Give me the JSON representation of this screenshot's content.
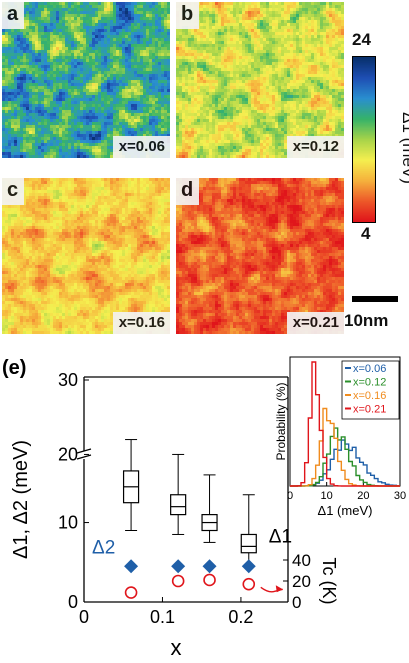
{
  "figure": {
    "panels": [
      {
        "letter": "a",
        "x_label": "x=0.06",
        "base_gap": 17.0,
        "variation": 4.5
      },
      {
        "letter": "b",
        "x_label": "x=0.12",
        "base_gap": 12.5,
        "variation": 3.5
      },
      {
        "letter": "c",
        "x_label": "x=0.16",
        "base_gap": 10.2,
        "variation": 2.5
      },
      {
        "letter": "d",
        "x_label": "x=0.21",
        "base_gap": 6.5,
        "variation": 2.5
      }
    ],
    "colorbar": {
      "max_label": "24",
      "min_label": "4",
      "label": "Δ1 (meV)",
      "stops": [
        "#08306b",
        "#1f4fb4",
        "#2a8fd0",
        "#36b36a",
        "#a7d44a",
        "#f5f050",
        "#f6b33d",
        "#ee5a2a",
        "#e0151b"
      ]
    },
    "scale_bar_label": "10nm",
    "panel_e_label": "(e)"
  },
  "chart_data": [
    {
      "type": "box",
      "title": "",
      "xlabel": "x",
      "ylabel": "Δ1, Δ2 (meV)",
      "ylabel_right": "Tc (K)",
      "xlim": [
        0,
        0.26
      ],
      "ylim": [
        0,
        30
      ],
      "ylim_right": [
        0,
        40
      ],
      "x_ticks": [
        "0",
        "0.1",
        "0.2"
      ],
      "x_tick_values": [
        0,
        0.1,
        0.2
      ],
      "y_ticks": [
        "0",
        "10",
        "20",
        "30"
      ],
      "y_tick_values": [
        0,
        10,
        20,
        30
      ],
      "y_axis_break": [
        18,
        21
      ],
      "y_right_ticks": [
        "0",
        "20",
        "40"
      ],
      "y_right_tick_values": [
        0,
        20,
        40
      ],
      "delta1_label": "Δ1",
      "delta2_label": "Δ2",
      "delta1_boxes": [
        {
          "x": 0.06,
          "whisker_low": 9.0,
          "q1": 12.5,
          "median": 14.5,
          "q3": 16.5,
          "whisker_high": 22.0
        },
        {
          "x": 0.12,
          "whisker_low": 8.5,
          "q1": 11.0,
          "median": 12.0,
          "q3": 13.5,
          "whisker_high": 20.0
        },
        {
          "x": 0.16,
          "whisker_low": 7.5,
          "q1": 9.0,
          "median": 10.0,
          "q3": 11.0,
          "whisker_high": 16.0
        },
        {
          "x": 0.21,
          "whisker_low": 4.5,
          "q1": 6.2,
          "median": 7.0,
          "q3": 8.5,
          "whisker_high": 13.5
        }
      ],
      "delta2_points": [
        {
          "x": 0.06,
          "y": 4.5
        },
        {
          "x": 0.12,
          "y": 4.5
        },
        {
          "x": 0.16,
          "y": 4.5
        },
        {
          "x": 0.21,
          "y": 4.5
        }
      ],
      "tc_points": [
        {
          "x": 0.06,
          "y": 9
        },
        {
          "x": 0.12,
          "y": 20
        },
        {
          "x": 0.16,
          "y": 21
        },
        {
          "x": 0.21,
          "y": 17
        }
      ],
      "colors": {
        "delta2": "#1f5fa8",
        "tc": "#e0151b",
        "box": "#000000"
      }
    },
    {
      "type": "line",
      "title": "",
      "xlabel": "Δ1 (meV)",
      "ylabel": "Probability (%)",
      "xlim": [
        0,
        30
      ],
      "ylim": [
        0,
        30
      ],
      "x_ticks": [
        "0",
        "10",
        "20",
        "30"
      ],
      "x_tick_values": [
        0,
        10,
        20,
        30
      ],
      "legend_position": "top-right",
      "series": [
        {
          "name": "x=0.06",
          "color": "#1f5fa8",
          "mean": 14.5,
          "sd": 3.8,
          "peak": 11
        },
        {
          "name": "x=0.12",
          "color": "#2a8f2a",
          "mean": 12.5,
          "sd": 2.7,
          "peak": 14
        },
        {
          "name": "x=0.16",
          "color": "#f08c1e",
          "mean": 10.0,
          "sd": 2.0,
          "peak": 19
        },
        {
          "name": "x=0.21",
          "color": "#e0151b",
          "mean": 6.5,
          "sd": 1.4,
          "peak": 29
        }
      ]
    }
  ]
}
